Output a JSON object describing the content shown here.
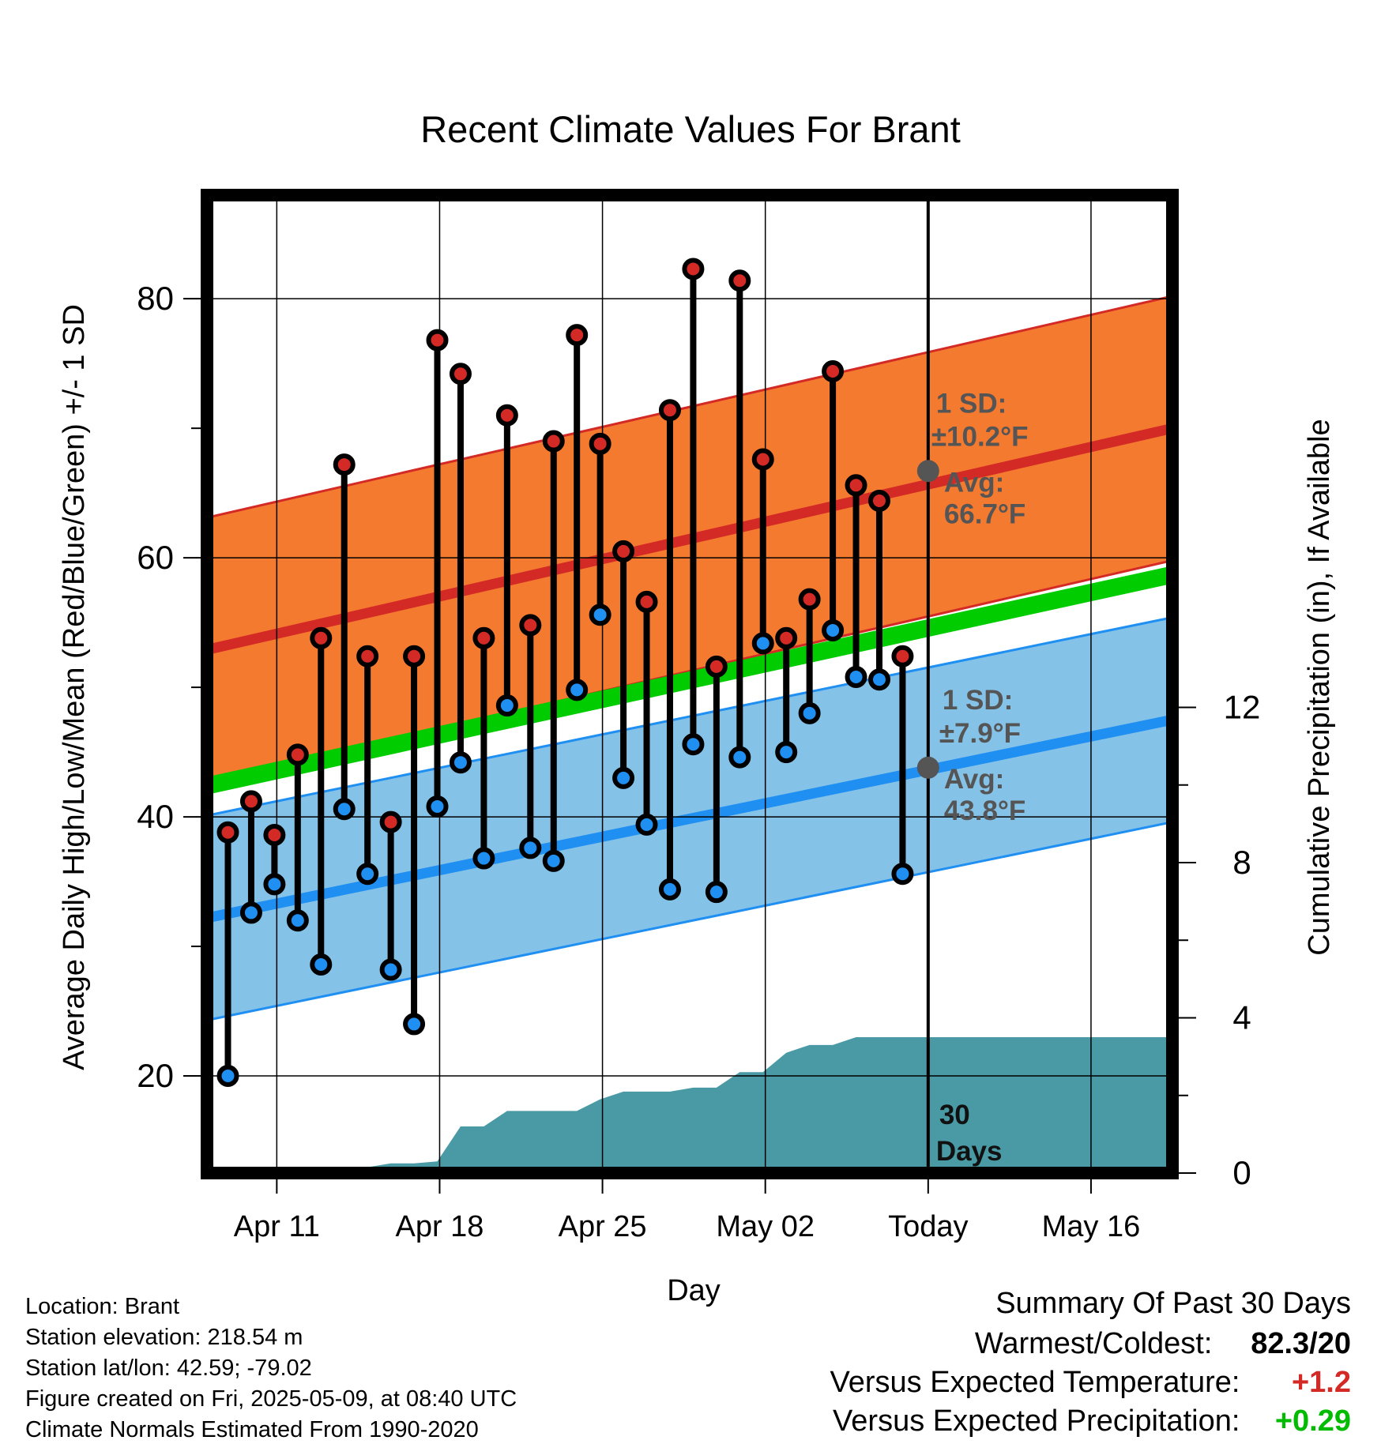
{
  "chart_data": {
    "type": "line",
    "title": "Recent Climate Values For Brant",
    "xlabel": "Day",
    "ylabel_left": "Average Daily High/Low/Mean (Red/Blue/Green) +/- 1 SD",
    "ylabel_right": "Cumulative Precipitation (in), If Available",
    "x_tick_labels": [
      "Apr 11",
      "Apr 18",
      "Apr 25",
      "May 02",
      "Today",
      "May 16"
    ],
    "y_left_ticks": [
      "20",
      "40",
      "60",
      "80"
    ],
    "y_right_ticks": [
      "0",
      "4",
      "8",
      "12"
    ],
    "ylim_left": [
      12.5,
      88
    ],
    "ylim_right": [
      0,
      25.2
    ],
    "x_range_days": [
      "2025-04-08",
      "2025-05-19"
    ],
    "highs": [
      38.8,
      41.2,
      38.6,
      44.8,
      53.8,
      67.2,
      52.4,
      39.6,
      52.4,
      76.8,
      74.2,
      53.8,
      71.0,
      54.8,
      69.0,
      77.2,
      68.8,
      60.5,
      56.6,
      71.4,
      82.3,
      51.6,
      81.4,
      67.6,
      53.8,
      56.8,
      74.4,
      65.6,
      64.4,
      52.4
    ],
    "lows": [
      20.0,
      32.6,
      34.8,
      32.0,
      28.6,
      40.6,
      35.6,
      28.2,
      24.0,
      40.8,
      44.2,
      36.8,
      48.6,
      37.6,
      36.6,
      49.8,
      55.6,
      43.0,
      39.4,
      34.4,
      45.6,
      34.2,
      44.6,
      53.4,
      45.0,
      48.0,
      54.4,
      50.8,
      50.6,
      35.6
    ],
    "normal_high": {
      "start": 52.9,
      "end": 70.0,
      "sd": 10.2,
      "today_avg": 66.7
    },
    "normal_low": {
      "start": 32.2,
      "end": 47.5,
      "sd": 7.9,
      "today_avg": 43.8
    },
    "normal_mean": {
      "start": 42.4,
      "end": 58.7
    },
    "cumulative_precipitation": [
      0.0,
      0.05,
      0.1,
      0.1,
      0.1,
      0.15,
      0.15,
      0.25,
      0.25,
      0.3,
      1.2,
      1.2,
      1.6,
      1.6,
      1.6,
      1.6,
      1.9,
      2.1,
      2.1,
      2.1,
      2.2,
      2.2,
      2.6,
      2.6,
      3.1,
      3.3,
      3.3,
      3.5,
      3.5,
      3.5
    ],
    "precip_total_days_label": "30",
    "precip_days_word": "Days",
    "sd_label": "1 SD:",
    "avg_label": "Avg:",
    "high_sd_value": "±10.2°F",
    "high_avg_value": "66.7°F",
    "low_sd_value": "±7.9°F",
    "low_avg_value": "43.8°F",
    "grid": true,
    "colors": {
      "high_band": "#f47a30",
      "high_line": "#d42a26",
      "mean_line": "#00cc00",
      "low_band": "#85c2e8",
      "low_line": "#1f8ff2",
      "precip": "#4a9aa5",
      "annotation": "#555555",
      "high_dot": "#d42a26",
      "low_dot": "#1f8ff2"
    }
  },
  "info": {
    "location": "Location: Brant",
    "elevation": "Station elevation: 218.54 m",
    "latlon": "Station lat/lon: 42.59; -79.02",
    "created": "Figure created on Fri, 2025-05-09, at 08:40 UTC",
    "normals": "Climate Normals Estimated From 1990-2020"
  },
  "summary": {
    "title": "Summary Of Past 30 Days",
    "warm_cold_label": "Warmest/Coldest:",
    "warm_cold_value": "82.3/20",
    "temp_label": "Versus Expected Temperature:",
    "temp_value": "+1.2",
    "temp_color": "#d42a26",
    "precip_label": "Versus Expected Precipitation:",
    "precip_value": "+0.29",
    "precip_color": "#00bb00"
  }
}
